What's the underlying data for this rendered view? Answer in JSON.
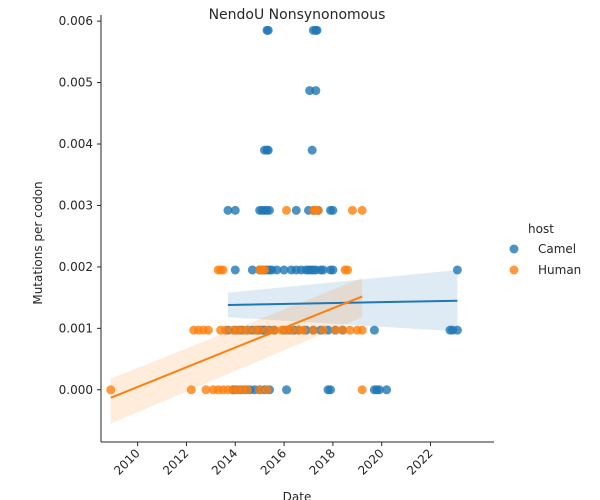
{
  "chart_data": {
    "type": "scatter",
    "title": "NendoU Nonsynonomous",
    "xlabel": "Date",
    "ylabel": "Mutations per codon",
    "xlim": [
      2008.5,
      2024.6
    ],
    "ylim": [
      -0.00085,
      0.0061
    ],
    "x_ticks": [
      2010,
      2012,
      2014,
      2016,
      2018,
      2020,
      2022
    ],
    "y_ticks": [
      0.0,
      0.001,
      0.002,
      0.003,
      0.004,
      0.005,
      0.006
    ],
    "x_tick_labels": [
      "2010",
      "2012",
      "2014",
      "2016",
      "2018",
      "2020",
      "2022"
    ],
    "y_tick_labels": [
      "0.000",
      "0.001",
      "0.002",
      "0.003",
      "0.004",
      "0.005",
      "0.006"
    ],
    "grid": false,
    "legend": {
      "title": "host",
      "position": "right"
    },
    "series": [
      {
        "name": "Camel",
        "color": "#1f77b4",
        "x": [
          2015.3,
          2015.35,
          2017.2,
          2017.3,
          2017.35,
          2017.05,
          2017.3,
          2015.2,
          2015.3,
          2015.35,
          2017.15,
          2013.7,
          2014.0,
          2015.0,
          2015.1,
          2015.2,
          2015.3,
          2015.4,
          2016.5,
          2017.0,
          2017.2,
          2017.4,
          2017.9,
          2018.0,
          2014.0,
          2014.7,
          2015.0,
          2015.1,
          2015.2,
          2015.3,
          2015.4,
          2015.5,
          2015.7,
          2016.0,
          2016.3,
          2016.5,
          2016.7,
          2016.9,
          2017.0,
          2017.1,
          2017.2,
          2017.3,
          2017.5,
          2017.6,
          2017.9,
          2018.0,
          2023.1,
          2013.7,
          2014.0,
          2014.2,
          2014.3,
          2014.5,
          2014.7,
          2014.9,
          2015.0,
          2015.1,
          2015.2,
          2015.4,
          2015.6,
          2016.0,
          2016.2,
          2016.4,
          2016.6,
          2016.9,
          2017.2,
          2017.5,
          2017.8,
          2018.1,
          2018.4,
          2019.7,
          2022.8,
          2022.9,
          2023.1,
          2013.9,
          2014.0,
          2014.2,
          2014.4,
          2014.6,
          2014.8,
          2015.0,
          2015.2,
          2015.4,
          2016.1,
          2017.8,
          2017.9,
          2019.7,
          2019.8,
          2019.9,
          2020.2
        ],
        "y": [
          0.00585,
          0.00585,
          0.00585,
          0.00585,
          0.00585,
          0.00487,
          0.00487,
          0.0039,
          0.0039,
          0.0039,
          0.0039,
          0.00292,
          0.00292,
          0.00292,
          0.00292,
          0.00292,
          0.00292,
          0.00292,
          0.00292,
          0.00292,
          0.00292,
          0.00292,
          0.00292,
          0.00292,
          0.00195,
          0.00195,
          0.00195,
          0.00195,
          0.00195,
          0.00195,
          0.00195,
          0.00195,
          0.00195,
          0.00195,
          0.00195,
          0.00195,
          0.00195,
          0.00195,
          0.00195,
          0.00195,
          0.00195,
          0.00195,
          0.00195,
          0.00195,
          0.00195,
          0.00195,
          0.00195,
          0.00097,
          0.00097,
          0.00097,
          0.00097,
          0.00097,
          0.00097,
          0.00097,
          0.00097,
          0.00097,
          0.00097,
          0.00097,
          0.00097,
          0.00097,
          0.00097,
          0.00097,
          0.00097,
          0.00097,
          0.00097,
          0.00097,
          0.00097,
          0.00097,
          0.00097,
          0.00097,
          0.00097,
          0.00097,
          0.00097,
          0.0,
          0.0,
          0.0,
          0.0,
          0.0,
          0.0,
          0.0,
          0.0,
          0.0,
          0.0,
          0.0,
          0.0,
          0.0,
          0.0,
          0.0,
          0.0
        ],
        "regression": {
          "x": [
            2013.7,
            2023.1
          ],
          "y": [
            0.00138,
            0.00145
          ]
        },
        "ci_upper": [
          0.00158,
          0.00195
        ],
        "ci_lower": [
          0.00118,
          0.00095
        ]
      },
      {
        "name": "Human",
        "color": "#ff7f0e",
        "x": [
          2016.1,
          2017.2,
          2017.3,
          2017.4,
          2018.8,
          2019.2,
          2013.3,
          2013.4,
          2013.5,
          2015.0,
          2015.1,
          2015.2,
          2018.5,
          2018.6,
          2012.3,
          2012.5,
          2012.7,
          2012.9,
          2013.4,
          2013.6,
          2013.9,
          2014.1,
          2014.3,
          2014.5,
          2014.8,
          2015.0,
          2015.3,
          2015.6,
          2015.9,
          2016.1,
          2016.3,
          2016.6,
          2016.8,
          2017.2,
          2017.6,
          2018.1,
          2018.4,
          2018.7,
          2019.0,
          2019.2,
          2008.9,
          2012.2,
          2012.8,
          2013.1,
          2013.3,
          2013.5,
          2013.7,
          2013.9,
          2014.1,
          2014.3,
          2014.5,
          2015.0,
          2015.3,
          2019.2
        ],
        "y": [
          0.00292,
          0.00292,
          0.00292,
          0.00292,
          0.00292,
          0.00292,
          0.00195,
          0.00195,
          0.00195,
          0.00195,
          0.00195,
          0.00195,
          0.00195,
          0.00195,
          0.00097,
          0.00097,
          0.00097,
          0.00097,
          0.00097,
          0.00097,
          0.00097,
          0.00097,
          0.00097,
          0.00097,
          0.00097,
          0.00097,
          0.00097,
          0.00097,
          0.00097,
          0.00097,
          0.00097,
          0.00097,
          0.00097,
          0.00097,
          0.00097,
          0.00097,
          0.00097,
          0.00097,
          0.00097,
          0.00097,
          0.0,
          0.0,
          0.0,
          0.0,
          0.0,
          0.0,
          0.0,
          0.0,
          0.0,
          0.0,
          0.0,
          0.0,
          0.0,
          0.0
        ],
        "regression": {
          "x": [
            2008.9,
            2019.2
          ],
          "y": [
            -0.00013,
            0.00152
          ]
        },
        "ci_upper": [
          0.00018,
          0.00182
        ],
        "ci_lower": [
          -0.00055,
          0.00118
        ]
      }
    ]
  }
}
